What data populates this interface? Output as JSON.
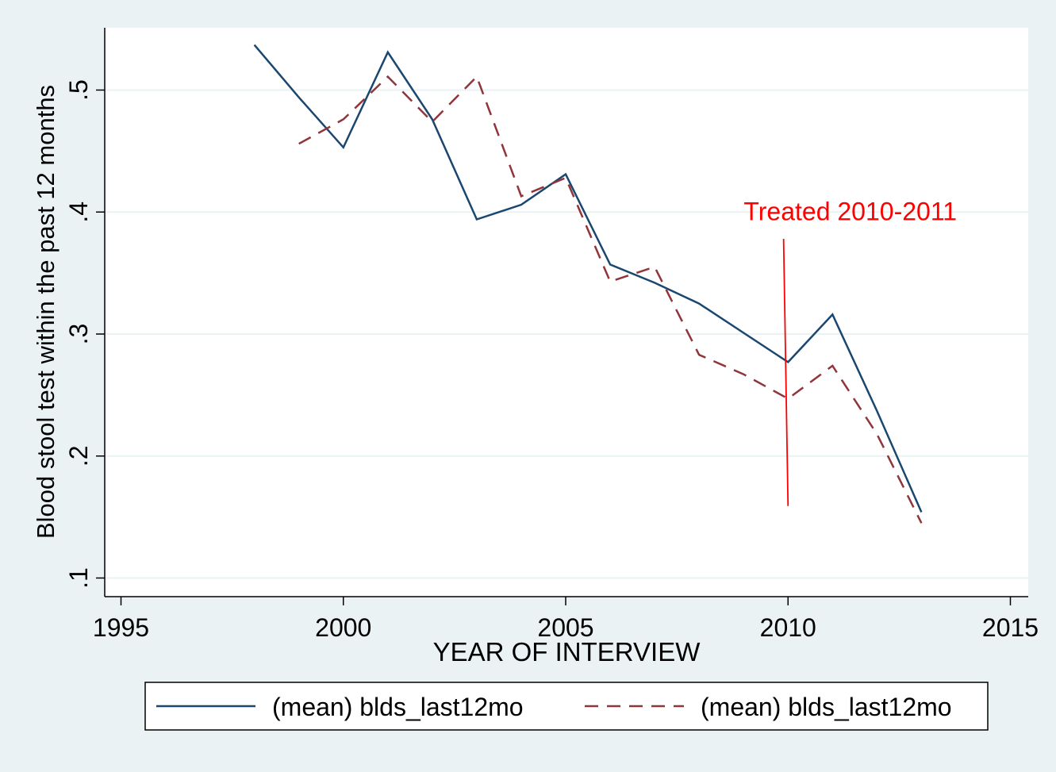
{
  "chart_data": {
    "type": "line",
    "xlabel": "YEAR OF INTERVIEW",
    "ylabel": "Blood stool test within the past 12 months",
    "xlim": [
      1995,
      2015
    ],
    "ylim": [
      0.1,
      0.5
    ],
    "xticks": [
      1995,
      2000,
      2005,
      2010,
      2015
    ],
    "yticks": [
      0.1,
      0.2,
      0.3,
      0.4,
      0.5
    ],
    "xtick_labels": [
      "1995",
      "2000",
      "2005",
      "2010",
      "2015"
    ],
    "ytick_labels": [
      ".1",
      ".2",
      ".3",
      ".4",
      ".5"
    ],
    "grid": true,
    "legend_position": "bottom",
    "series": [
      {
        "name": "(mean) blds_last12mo",
        "style": "solid",
        "color": "#1a476f",
        "x": [
          1998,
          1999,
          2000,
          2001,
          2002,
          2003,
          2004,
          2005,
          2006,
          2007,
          2008,
          2009,
          2010,
          2011,
          2012,
          2013
        ],
        "y": [
          0.537,
          0.494,
          0.453,
          0.531,
          0.476,
          0.394,
          0.406,
          0.431,
          0.357,
          0.342,
          0.325,
          0.301,
          0.277,
          0.316,
          0.237,
          0.154
        ]
      },
      {
        "name": "(mean) blds_last12mo",
        "style": "dashed",
        "color": "#90353b",
        "x": [
          1999,
          2000,
          2001,
          2002,
          2003,
          2004,
          2005,
          2006,
          2007,
          2008,
          2009,
          2010,
          2011,
          2012,
          2013
        ],
        "y": [
          0.456,
          0.476,
          0.511,
          0.474,
          0.511,
          0.413,
          0.428,
          0.343,
          0.355,
          0.283,
          0.267,
          0.247,
          0.274,
          0.218,
          0.145
        ]
      }
    ],
    "annotations": [
      {
        "text": "Treated 2010-2011",
        "color": "#ff0000",
        "label_x": 2011.4,
        "label_y": 0.4,
        "line": {
          "x1": 2009.9,
          "y1": 0.378,
          "x2": 2010.0,
          "y2": 0.159
        }
      }
    ]
  }
}
